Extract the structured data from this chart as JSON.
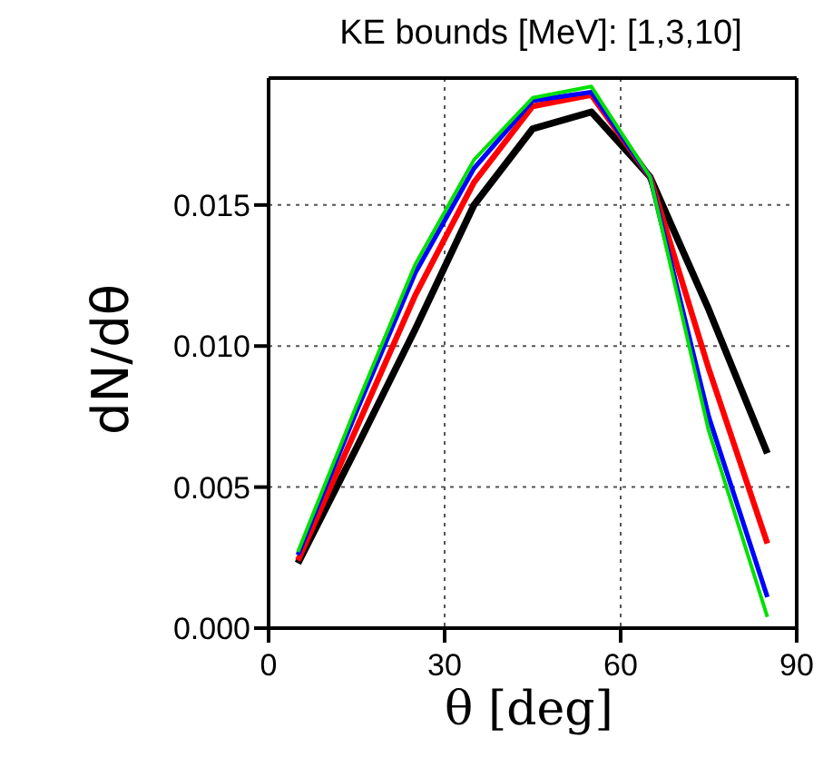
{
  "chart_data": {
    "type": "line",
    "title": "KE bounds [MeV]: [1,3,10]",
    "xlabel": "θ [deg]",
    "ylabel": "dN/dθ",
    "x": [
      5,
      15,
      25,
      35,
      45,
      55,
      65,
      75,
      85
    ],
    "series": [
      {
        "color": "#000000",
        "values": [
          0.0023,
          0.0064,
          0.0106,
          0.015,
          0.0177,
          0.0183,
          0.016,
          0.0113,
          0.0062
        ]
      },
      {
        "color": "#ff0000",
        "values": [
          0.0024,
          0.0071,
          0.0118,
          0.0158,
          0.0185,
          0.0189,
          0.016,
          0.0092,
          0.003
        ]
      },
      {
        "color": "#0000ff",
        "values": [
          0.0026,
          0.0077,
          0.0126,
          0.0163,
          0.0187,
          0.019,
          0.016,
          0.0075,
          0.0011
        ]
      },
      {
        "color": "#00e000",
        "values": [
          0.0027,
          0.0079,
          0.0129,
          0.0166,
          0.0188,
          0.0192,
          0.016,
          0.007,
          0.0004
        ]
      }
    ],
    "xlim": [
      0,
      90
    ],
    "xticks": [
      0,
      30,
      60,
      90
    ],
    "ylim": [
      0,
      0.0195
    ],
    "yticks": [
      {
        "value": 0,
        "label": "0.000"
      },
      {
        "value": 0.005,
        "label": "0.005"
      },
      {
        "value": 0.01,
        "label": "0.010"
      },
      {
        "value": 0.015,
        "label": "0.015"
      }
    ],
    "grid": true,
    "marker": "none",
    "line_style": "solid",
    "legend": false
  }
}
